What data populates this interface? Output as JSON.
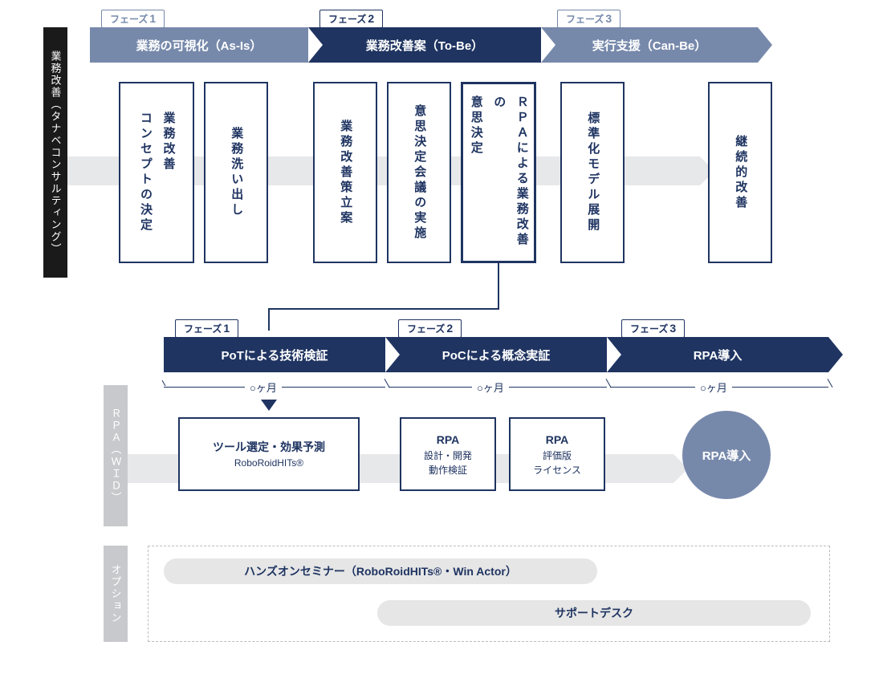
{
  "colors": {
    "navy": "#1f3461",
    "slate": "#7789ab",
    "black": "#1a1a1a",
    "gray_label": "#c7c9cc",
    "flowbar": "#e7e8ea",
    "pill_bg": "#e6e6e6",
    "border_dash": "#bcbcbc",
    "white": "#ffffff"
  },
  "side_labels": {
    "s1": "業務改善（タナベコンサルティング）",
    "s2": "ＲＰＡ（ＷＩＤ）",
    "s3": "オプション"
  },
  "row1": {
    "phases": [
      {
        "tag": "フェーズ",
        "num": "1",
        "title": "業務の可視化（As-Is）",
        "style": "light"
      },
      {
        "tag": "フェーズ",
        "num": "2",
        "title": "業務改善案（To-Be）",
        "style": "dark"
      },
      {
        "tag": "フェーズ",
        "num": "3",
        "title": "実行支援（Can-Be）",
        "style": "light"
      }
    ],
    "boxes": [
      {
        "text": "業務改善\nコンセプトの決定",
        "em": false
      },
      {
        "text": "業務洗い出し",
        "em": false
      },
      {
        "text": "業務改善策立案",
        "em": false
      },
      {
        "text": "意思決定会議の実施",
        "em": false
      },
      {
        "text": "ＲＰＡによる業務改善の\n意思決定",
        "em": true
      },
      {
        "text": "標準化モデル展開",
        "em": false
      },
      {
        "text": "継続的改善",
        "em": false
      }
    ]
  },
  "row2": {
    "phases": [
      {
        "tag": "フェーズ",
        "num": "1",
        "title": "PoTによる技術検証",
        "style": "dark"
      },
      {
        "tag": "フェーズ",
        "num": "2",
        "title": "PoCによる概念実証",
        "style": "dark"
      },
      {
        "tag": "フェーズ",
        "num": "3",
        "title": "RPA導入",
        "style": "dark"
      }
    ],
    "durations": [
      "○ヶ月",
      "○ヶ月",
      "○ヶ月"
    ],
    "boxes": [
      {
        "title": "ツール選定・効果予測",
        "sub": "RoboRoidHITs®"
      },
      {
        "title": "RPA",
        "sub": "設計・開発\n動作検証"
      },
      {
        "title": "RPA",
        "sub": "評価版\nライセンス"
      }
    ],
    "circle": "RPA導入"
  },
  "options": {
    "pill1": "ハンズオンセミナー（RoboRoidHITs®・Win Actor）",
    "pill2": "サポートデスク"
  }
}
